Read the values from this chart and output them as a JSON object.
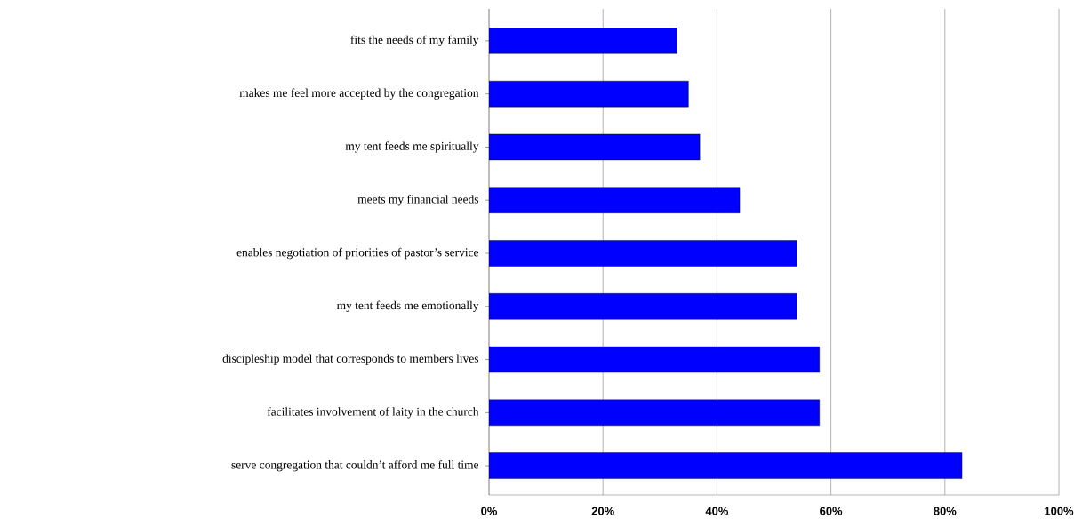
{
  "chart_data": {
    "type": "bar",
    "orientation": "horizontal",
    "categories": [
      "fits the needs of my family",
      "makes me feel more accepted by the congregation",
      "my tent feeds me spiritually",
      "meets my financial needs",
      "enables negotiation of priorities of pastor’s service",
      "my tent feeds me emotionally",
      "discipleship model that corresponds to members lives",
      "facilitates involvement of laity in the church",
      "serve congregation that couldn’t afford me full time"
    ],
    "values": [
      33,
      35,
      37,
      44,
      54,
      54,
      58,
      58,
      83
    ],
    "color": "#0000ff",
    "xlim": [
      0,
      100
    ],
    "xticks": [
      {
        "value": 0,
        "label": "0%"
      },
      {
        "value": 20,
        "label": "20%"
      },
      {
        "value": 40,
        "label": "40%"
      },
      {
        "value": 60,
        "label": "60%"
      },
      {
        "value": 80,
        "label": "80%"
      },
      {
        "value": 100,
        "label": "100%"
      }
    ],
    "grid": "x"
  }
}
